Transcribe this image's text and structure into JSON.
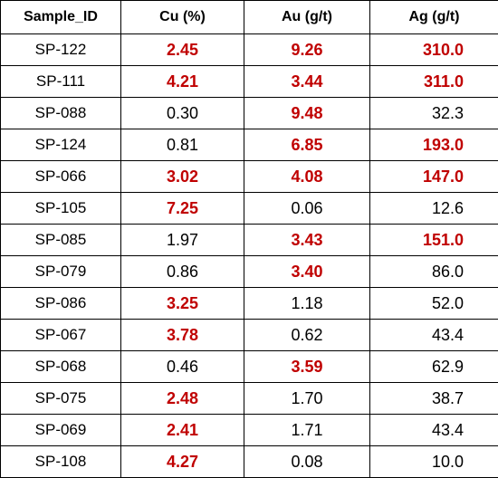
{
  "colors": {
    "highlight": "#c00000",
    "text": "#000000",
    "border": "#000000"
  },
  "table": {
    "headers": [
      "Sample_ID",
      "Cu (%)",
      "Au (g/t)",
      "Ag (g/t)"
    ],
    "rows": [
      {
        "id": "SP-122",
        "cu": "2.45",
        "cu_hi": true,
        "au": "9.26",
        "au_hi": true,
        "ag": "310.0",
        "ag_hi": true
      },
      {
        "id": "SP-111",
        "cu": "4.21",
        "cu_hi": true,
        "au": "3.44",
        "au_hi": true,
        "ag": "311.0",
        "ag_hi": true
      },
      {
        "id": "SP-088",
        "cu": "0.30",
        "cu_hi": false,
        "au": "9.48",
        "au_hi": true,
        "ag": "32.3",
        "ag_hi": false
      },
      {
        "id": "SP-124",
        "cu": "0.81",
        "cu_hi": false,
        "au": "6.85",
        "au_hi": true,
        "ag": "193.0",
        "ag_hi": true
      },
      {
        "id": "SP-066",
        "cu": "3.02",
        "cu_hi": true,
        "au": "4.08",
        "au_hi": true,
        "ag": "147.0",
        "ag_hi": true
      },
      {
        "id": "SP-105",
        "cu": "7.25",
        "cu_hi": true,
        "au": "0.06",
        "au_hi": false,
        "ag": "12.6",
        "ag_hi": false
      },
      {
        "id": "SP-085",
        "cu": "1.97",
        "cu_hi": false,
        "au": "3.43",
        "au_hi": true,
        "ag": "151.0",
        "ag_hi": true
      },
      {
        "id": "SP-079",
        "cu": "0.86",
        "cu_hi": false,
        "au": "3.40",
        "au_hi": true,
        "ag": "86.0",
        "ag_hi": false
      },
      {
        "id": "SP-086",
        "cu": "3.25",
        "cu_hi": true,
        "au": "1.18",
        "au_hi": false,
        "ag": "52.0",
        "ag_hi": false
      },
      {
        "id": "SP-067",
        "cu": "3.78",
        "cu_hi": true,
        "au": "0.62",
        "au_hi": false,
        "ag": "43.4",
        "ag_hi": false
      },
      {
        "id": "SP-068",
        "cu": "0.46",
        "cu_hi": false,
        "au": "3.59",
        "au_hi": true,
        "ag": "62.9",
        "ag_hi": false
      },
      {
        "id": "SP-075",
        "cu": "2.48",
        "cu_hi": true,
        "au": "1.70",
        "au_hi": false,
        "ag": "38.7",
        "ag_hi": false
      },
      {
        "id": "SP-069",
        "cu": "2.41",
        "cu_hi": true,
        "au": "1.71",
        "au_hi": false,
        "ag": "43.4",
        "ag_hi": false
      },
      {
        "id": "SP-108",
        "cu": "4.27",
        "cu_hi": true,
        "au": "0.08",
        "au_hi": false,
        "ag": "10.0",
        "ag_hi": false
      }
    ]
  }
}
